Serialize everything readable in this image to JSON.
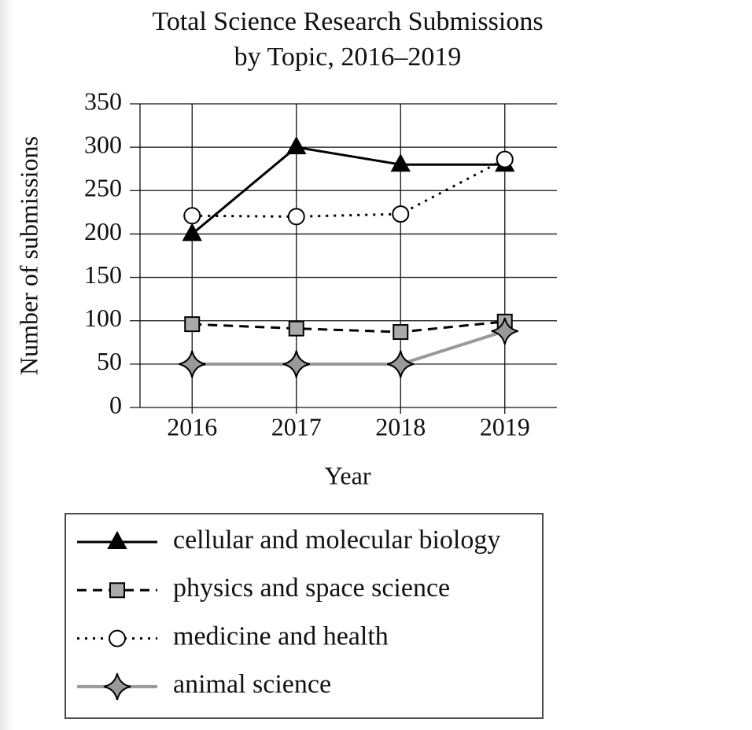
{
  "chart_data": {
    "type": "line",
    "title": [
      "Total Science Research Submissions",
      "by Topic, 2016–2019"
    ],
    "x_label": "Year",
    "y_label": "Number of submissions",
    "categories": [
      "2016",
      "2017",
      "2018",
      "2019"
    ],
    "ylim": [
      0,
      350
    ],
    "yticks": [
      0,
      50,
      100,
      150,
      200,
      250,
      300,
      350
    ],
    "grid": true,
    "series": [
      {
        "name": "cellular and molecular biology",
        "color": "#000000",
        "dash": "solid",
        "marker": "triangle",
        "marker_fill": "#000000",
        "values": [
          200,
          300,
          280,
          280
        ]
      },
      {
        "name": "physics and space science",
        "color": "#000000",
        "dash": "dashed",
        "marker": "square",
        "marker_fill": "#aaaaaa",
        "values": [
          96,
          91,
          87,
          99
        ]
      },
      {
        "name": "medicine and health",
        "color": "#000000",
        "dash": "dotted",
        "marker": "circle",
        "marker_fill": "#ffffff",
        "values": [
          221,
          220,
          223,
          286
        ]
      },
      {
        "name": "animal science",
        "color": "#999999",
        "dash": "solid",
        "marker": "star",
        "marker_fill": "#999999",
        "values": [
          50,
          50,
          50,
          88
        ]
      }
    ]
  }
}
